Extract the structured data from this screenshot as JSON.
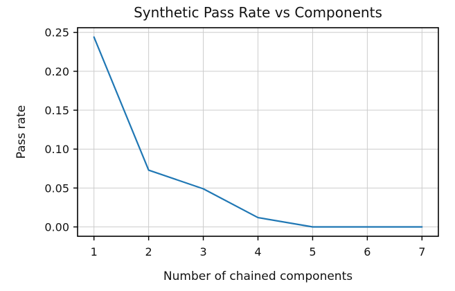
{
  "chart_data": {
    "type": "line",
    "title": "Synthetic Pass Rate vs Components",
    "xlabel": "Number of chained components",
    "ylabel": "Pass rate",
    "x": [
      1,
      2,
      3,
      4,
      5,
      6,
      7
    ],
    "series": [
      {
        "values": [
          0.244,
          0.073,
          0.049,
          0.012,
          0.0,
          0.0,
          0.0
        ],
        "color": "#1f77b4"
      }
    ],
    "xlim": [
      0.7,
      7.3
    ],
    "ylim": [
      -0.012,
      0.256
    ],
    "xticks": [
      1,
      2,
      3,
      4,
      5,
      6,
      7
    ],
    "xtick_labels": [
      "1",
      "2",
      "3",
      "4",
      "5",
      "6",
      "7"
    ],
    "yticks": [
      0.0,
      0.05,
      0.1,
      0.15,
      0.2,
      0.25
    ],
    "ytick_labels": [
      "0.00",
      "0.05",
      "0.10",
      "0.15",
      "0.20",
      "0.25"
    ],
    "grid": true,
    "legend": "none"
  }
}
